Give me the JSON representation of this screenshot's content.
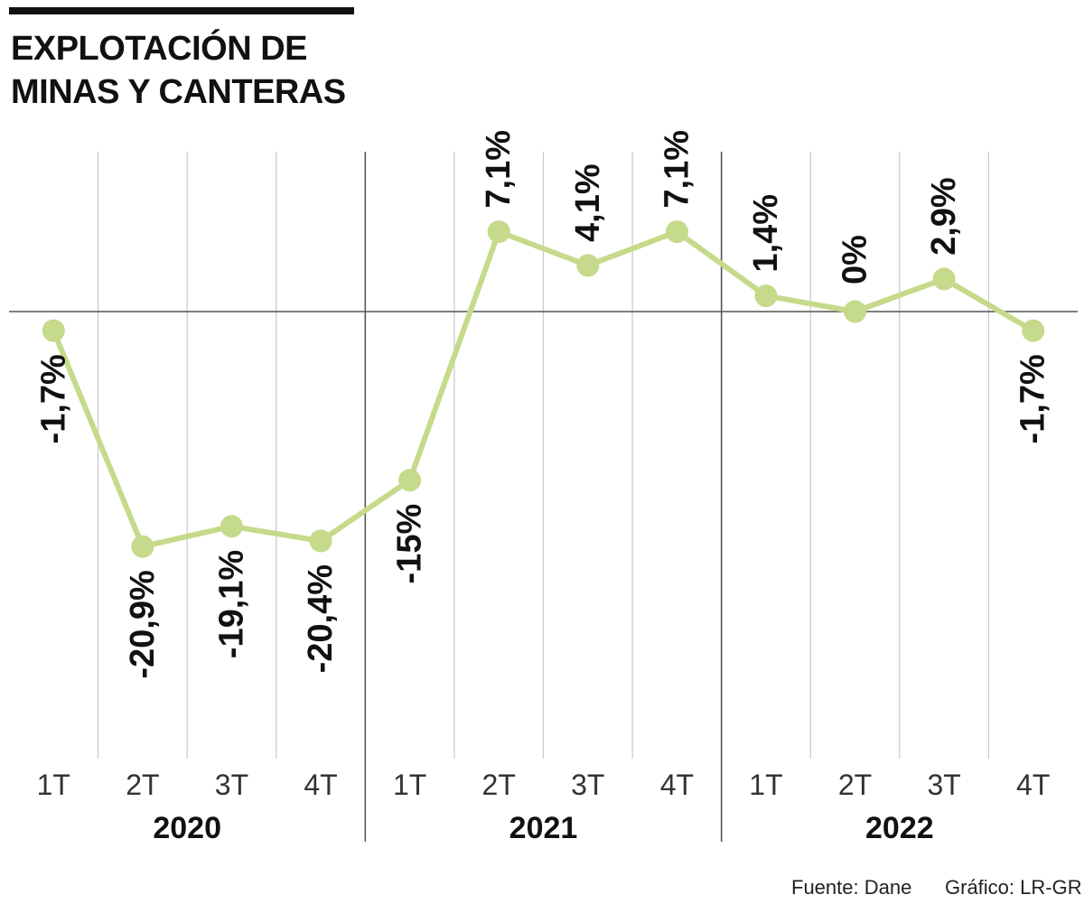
{
  "title": {
    "line1": "EXPLOTACIÓN DE",
    "line2": "MINAS Y CANTERAS"
  },
  "chart_data": {
    "type": "line",
    "title": "EXPLOTACIÓN DE MINAS Y CANTERAS",
    "categories": [
      "1T",
      "2T",
      "3T",
      "4T",
      "1T",
      "2T",
      "3T",
      "4T",
      "1T",
      "2T",
      "3T",
      "4T"
    ],
    "years": [
      "2020",
      "2021",
      "2022"
    ],
    "values": [
      -1.7,
      -20.9,
      -19.1,
      -20.4,
      -15,
      7.1,
      4.1,
      7.1,
      1.4,
      0,
      2.9,
      -1.7
    ],
    "data_labels": [
      "-1,7%",
      "-20,9%",
      "-19,1%",
      "-20,4%",
      "-15%",
      "7,1%",
      "4,1%",
      "7,1%",
      "1,4%",
      "0%",
      "2,9%",
      "-1,7%"
    ],
    "ylim": [
      -30,
      12
    ],
    "grid": true,
    "colors": {
      "line": "#c5da8a",
      "text": "#111111",
      "grid": "#c8c8c8",
      "separator": "#555555"
    }
  },
  "footer": {
    "source": "Fuente: Dane",
    "credit": "Gráfico: LR-GR"
  }
}
